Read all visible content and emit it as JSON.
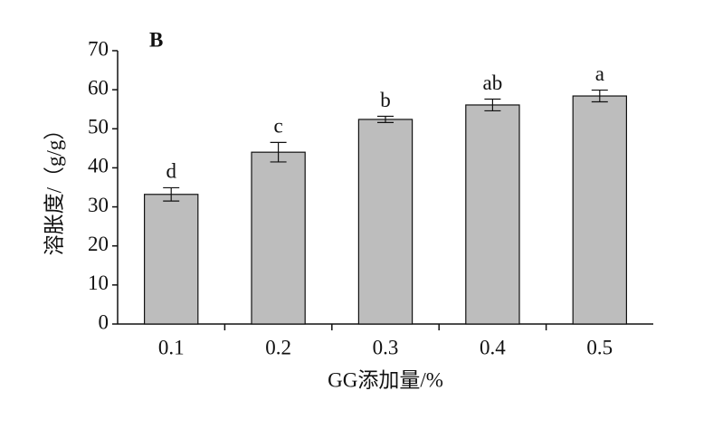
{
  "chart_data": {
    "type": "bar",
    "panel_label": "B",
    "y_label": "溶胀度/（g/g）",
    "x_label": "GG添加量/%",
    "categories": [
      "0.1",
      "0.2",
      "0.3",
      "0.4",
      "0.5"
    ],
    "values": [
      33.2,
      44,
      52.4,
      56.1,
      58.4
    ],
    "errors": [
      1.7,
      2.5,
      0.8,
      1.5,
      1.5
    ],
    "letters": [
      "d",
      "c",
      "b",
      "ab",
      "a"
    ],
    "color": "#bdbdbd",
    "ylim": [
      0,
      70
    ],
    "yticks": [
      0,
      10,
      20,
      30,
      40,
      50,
      60,
      70
    ],
    "grid": false
  }
}
